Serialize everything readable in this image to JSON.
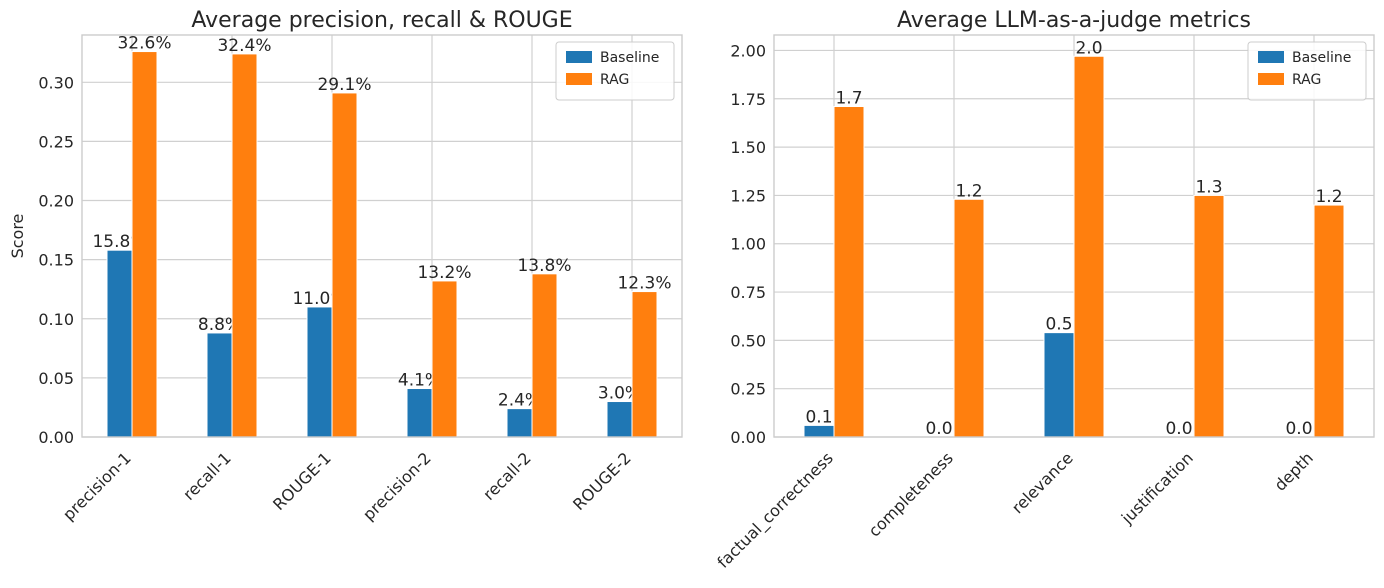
{
  "colors": {
    "baseline": "#1f77b4",
    "rag": "#ff7f0e"
  },
  "chart_data": [
    {
      "type": "bar",
      "title": "Average precision, recall & ROUGE",
      "xlabel": "",
      "ylabel": "Score",
      "ylim": [
        0,
        0.34
      ],
      "yticks": [
        0.0,
        0.05,
        0.1,
        0.15,
        0.2,
        0.25,
        0.3
      ],
      "ytick_labels": [
        "0.00",
        "0.05",
        "0.10",
        "0.15",
        "0.20",
        "0.25",
        "0.30"
      ],
      "categories": [
        "precision-1",
        "recall-1",
        "ROUGE-1",
        "precision-2",
        "recall-2",
        "ROUGE-2"
      ],
      "series": [
        {
          "name": "Baseline",
          "values": [
            0.158,
            0.088,
            0.11,
            0.041,
            0.024,
            0.03
          ],
          "labels": [
            "15.8%",
            "8.8%",
            "11.0%",
            "4.1%",
            "2.4%",
            "3.0%"
          ]
        },
        {
          "name": "RAG",
          "values": [
            0.326,
            0.324,
            0.291,
            0.132,
            0.138,
            0.123
          ],
          "labels": [
            "32.6%",
            "32.4%",
            "29.1%",
            "13.2%",
            "13.8%",
            "12.3%"
          ]
        }
      ],
      "grid": true,
      "legend": "top-right"
    },
    {
      "type": "bar",
      "title": "Average LLM-as-a-judge metrics",
      "xlabel": "",
      "ylabel": "",
      "ylim": [
        0,
        2.08
      ],
      "yticks": [
        0.0,
        0.25,
        0.5,
        0.75,
        1.0,
        1.25,
        1.5,
        1.75,
        2.0
      ],
      "ytick_labels": [
        "0.00",
        "0.25",
        "0.50",
        "0.75",
        "1.00",
        "1.25",
        "1.50",
        "1.75",
        "2.00"
      ],
      "categories": [
        "factual_correctness",
        "completeness",
        "relevance",
        "justification",
        "depth"
      ],
      "series": [
        {
          "name": "Baseline",
          "values": [
            0.06,
            0.0,
            0.54,
            0.0,
            0.0
          ],
          "labels": [
            "0.1",
            "0.0",
            "0.5",
            "0.0",
            "0.0"
          ]
        },
        {
          "name": "RAG",
          "values": [
            1.71,
            1.23,
            1.97,
            1.25,
            1.2
          ],
          "labels": [
            "1.7",
            "1.2",
            "2.0",
            "1.3",
            "1.2"
          ]
        }
      ],
      "grid": true,
      "legend": "top-right"
    }
  ]
}
